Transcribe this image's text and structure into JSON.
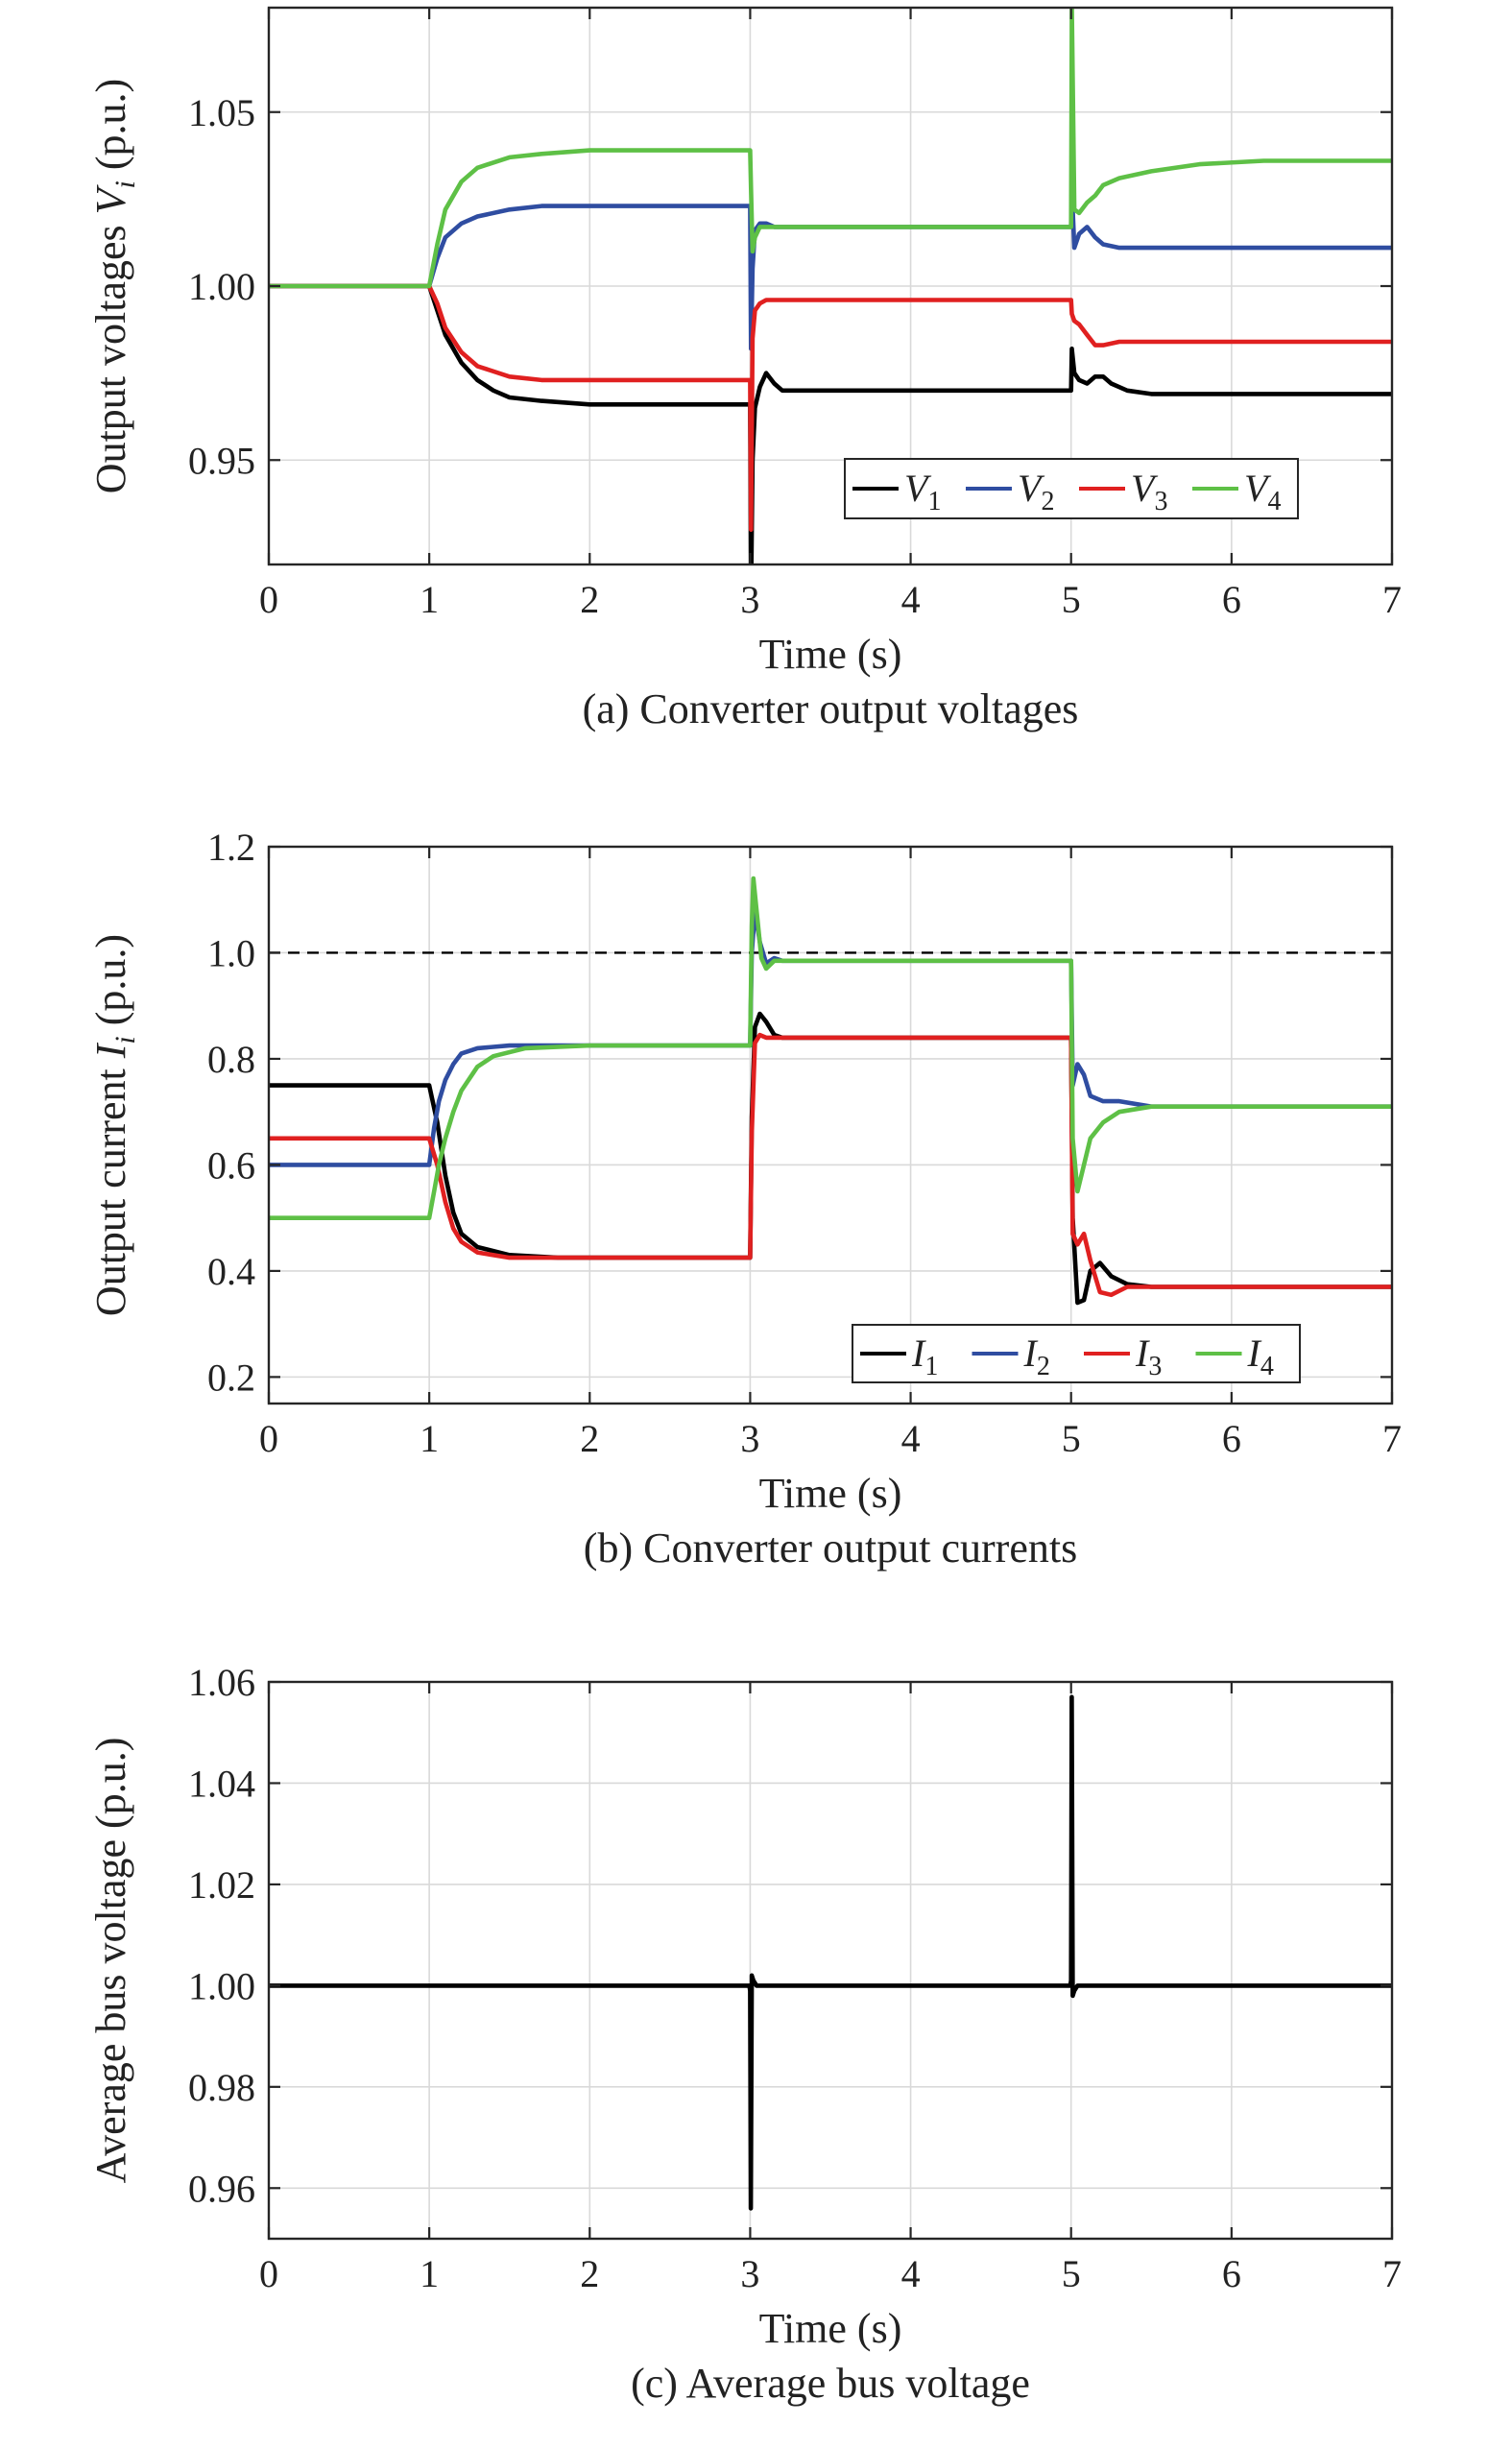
{
  "chart_data": [
    {
      "type": "line",
      "caption": "(a) Converter output voltages",
      "xlabel": "Time (s)",
      "ylabel_prefix": "Output voltages ",
      "ylabel_symbol": "V",
      "ylabel_sub": "i",
      "ylabel_suffix": " (p.u.)",
      "xlim": [
        0,
        7
      ],
      "ylim": [
        0.92,
        1.08
      ],
      "xticks": [
        "0",
        "1",
        "2",
        "3",
        "4",
        "5",
        "6",
        "7"
      ],
      "yticks": [
        "0.95",
        "1.00",
        "1.05"
      ],
      "ytick_values": [
        0.95,
        1.0,
        1.05
      ],
      "grid": true,
      "legend_position": "bottom-right",
      "series": [
        {
          "name": "V1",
          "symbol": "V",
          "sub": "1",
          "color": "#000000",
          "x": [
            0,
            1,
            1.05,
            1.1,
            1.2,
            1.3,
            1.4,
            1.5,
            1.7,
            2.0,
            2.5,
            2.99,
            3.0,
            3.005,
            3.015,
            3.03,
            3.06,
            3.1,
            3.15,
            3.2,
            3.3,
            4.0,
            4.99,
            5.0,
            5.005,
            5.02,
            5.05,
            5.1,
            5.15,
            5.2,
            5.25,
            5.35,
            5.5,
            6.0,
            7.0
          ],
          "y": [
            1.0,
            1.0,
            0.993,
            0.986,
            0.978,
            0.973,
            0.97,
            0.968,
            0.967,
            0.966,
            0.966,
            0.966,
            0.966,
            0.91,
            0.95,
            0.965,
            0.971,
            0.975,
            0.972,
            0.97,
            0.97,
            0.97,
            0.97,
            0.97,
            0.982,
            0.975,
            0.973,
            0.972,
            0.974,
            0.974,
            0.972,
            0.97,
            0.969,
            0.969,
            0.969
          ]
        },
        {
          "name": "V2",
          "symbol": "V",
          "sub": "2",
          "color": "#2f4da1",
          "x": [
            0,
            1,
            1.05,
            1.1,
            1.2,
            1.3,
            1.5,
            1.7,
            2.0,
            2.99,
            3.0,
            3.005,
            3.015,
            3.03,
            3.06,
            3.1,
            3.15,
            3.2,
            3.3,
            4.0,
            4.99,
            5.0,
            5.005,
            5.02,
            5.05,
            5.1,
            5.15,
            5.2,
            5.3,
            5.5,
            6.0,
            7.0
          ],
          "y": [
            1.0,
            1.0,
            1.008,
            1.014,
            1.018,
            1.02,
            1.022,
            1.023,
            1.023,
            1.023,
            1.023,
            0.982,
            1.005,
            1.016,
            1.018,
            1.018,
            1.017,
            1.017,
            1.017,
            1.017,
            1.017,
            1.017,
            1.028,
            1.011,
            1.015,
            1.017,
            1.014,
            1.012,
            1.011,
            1.011,
            1.011,
            1.011
          ]
        },
        {
          "name": "V3",
          "symbol": "V",
          "sub": "3",
          "color": "#e02020",
          "x": [
            0,
            1,
            1.05,
            1.1,
            1.2,
            1.3,
            1.5,
            1.7,
            2.0,
            2.99,
            3.0,
            3.005,
            3.015,
            3.03,
            3.06,
            3.1,
            3.2,
            4.0,
            4.99,
            5.0,
            5.005,
            5.02,
            5.05,
            5.1,
            5.15,
            5.2,
            5.3,
            5.5,
            6.0,
            7.0
          ],
          "y": [
            1.0,
            1.0,
            0.995,
            0.988,
            0.981,
            0.977,
            0.974,
            0.973,
            0.973,
            0.973,
            0.973,
            0.93,
            0.985,
            0.993,
            0.995,
            0.996,
            0.996,
            0.996,
            0.996,
            0.996,
            0.992,
            0.99,
            0.989,
            0.986,
            0.983,
            0.983,
            0.984,
            0.984,
            0.984,
            0.984
          ]
        },
        {
          "name": "V4",
          "symbol": "V",
          "sub": "4",
          "color": "#5ec046",
          "x": [
            0,
            1,
            1.05,
            1.1,
            1.2,
            1.3,
            1.5,
            1.7,
            2.0,
            2.99,
            3.0,
            3.005,
            3.015,
            3.03,
            3.06,
            3.1,
            3.2,
            4.0,
            4.99,
            5.0,
            5.005,
            5.02,
            5.05,
            5.1,
            5.15,
            5.2,
            5.3,
            5.5,
            5.8,
            6.2,
            7.0
          ],
          "y": [
            1.0,
            1.0,
            1.012,
            1.022,
            1.03,
            1.034,
            1.037,
            1.038,
            1.039,
            1.039,
            1.039,
            1.028,
            1.01,
            1.014,
            1.017,
            1.017,
            1.017,
            1.017,
            1.017,
            1.017,
            1.08,
            1.022,
            1.021,
            1.024,
            1.026,
            1.029,
            1.031,
            1.033,
            1.035,
            1.036,
            1.036
          ]
        }
      ]
    },
    {
      "type": "line",
      "caption": "(b) Converter output currents",
      "xlabel": "Time (s)",
      "ylabel_prefix": "Output current ",
      "ylabel_symbol": "I",
      "ylabel_sub": "i",
      "ylabel_suffix": " (p.u.)",
      "xlim": [
        0,
        7
      ],
      "ylim": [
        0.15,
        1.2
      ],
      "xticks": [
        "0",
        "1",
        "2",
        "3",
        "4",
        "5",
        "6",
        "7"
      ],
      "yticks": [
        "0.2",
        "0.4",
        "0.6",
        "0.8",
        "1.0",
        "1.2"
      ],
      "ytick_values": [
        0.2,
        0.4,
        0.6,
        0.8,
        1.0,
        1.2
      ],
      "reference_line": 1.0,
      "grid": true,
      "legend_position": "bottom-right",
      "series": [
        {
          "name": "I1",
          "symbol": "I",
          "sub": "1",
          "color": "#000000",
          "x": [
            0,
            1,
            1.05,
            1.1,
            1.15,
            1.2,
            1.3,
            1.5,
            1.8,
            2.5,
            2.99,
            3.0,
            3.01,
            3.03,
            3.06,
            3.1,
            3.15,
            3.2,
            3.3,
            4.0,
            4.99,
            5.0,
            5.01,
            5.04,
            5.08,
            5.12,
            5.18,
            5.25,
            5.35,
            5.5,
            6.0,
            7.0
          ],
          "y": [
            0.75,
            0.75,
            0.68,
            0.58,
            0.51,
            0.47,
            0.445,
            0.43,
            0.425,
            0.425,
            0.425,
            0.425,
            0.69,
            0.86,
            0.885,
            0.87,
            0.845,
            0.84,
            0.84,
            0.84,
            0.84,
            0.84,
            0.5,
            0.34,
            0.345,
            0.4,
            0.415,
            0.39,
            0.375,
            0.37,
            0.37,
            0.37
          ]
        },
        {
          "name": "I2",
          "symbol": "I",
          "sub": "2",
          "color": "#2f4da1",
          "x": [
            0,
            1,
            1.03,
            1.06,
            1.1,
            1.15,
            1.2,
            1.3,
            1.5,
            2.0,
            2.99,
            3.0,
            3.01,
            3.03,
            3.06,
            3.1,
            3.15,
            3.2,
            3.3,
            4.0,
            4.99,
            5.0,
            5.01,
            5.04,
            5.08,
            5.12,
            5.2,
            5.3,
            5.5,
            6.0,
            7.0
          ],
          "y": [
            0.6,
            0.6,
            0.67,
            0.72,
            0.76,
            0.79,
            0.81,
            0.82,
            0.825,
            0.825,
            0.825,
            0.825,
            1.0,
            1.08,
            1.02,
            0.98,
            0.99,
            0.985,
            0.985,
            0.985,
            0.985,
            0.985,
            0.75,
            0.79,
            0.77,
            0.73,
            0.72,
            0.72,
            0.71,
            0.71,
            0.71
          ]
        },
        {
          "name": "I3",
          "symbol": "I",
          "sub": "3",
          "color": "#e02020",
          "x": [
            0,
            1,
            1.05,
            1.1,
            1.15,
            1.2,
            1.3,
            1.5,
            1.8,
            2.5,
            2.99,
            3.0,
            3.01,
            3.03,
            3.06,
            3.1,
            3.2,
            4.0,
            4.99,
            5.0,
            5.01,
            5.04,
            5.08,
            5.12,
            5.18,
            5.25,
            5.35,
            5.5,
            6.0,
            7.0
          ],
          "y": [
            0.65,
            0.65,
            0.6,
            0.53,
            0.48,
            0.455,
            0.435,
            0.425,
            0.425,
            0.425,
            0.425,
            0.425,
            0.66,
            0.83,
            0.845,
            0.84,
            0.84,
            0.84,
            0.84,
            0.84,
            0.47,
            0.45,
            0.47,
            0.42,
            0.36,
            0.355,
            0.37,
            0.37,
            0.37,
            0.37
          ]
        },
        {
          "name": "I4",
          "symbol": "I",
          "sub": "4",
          "color": "#5ec046",
          "x": [
            0,
            1,
            1.03,
            1.06,
            1.1,
            1.15,
            1.2,
            1.3,
            1.4,
            1.6,
            2.0,
            2.99,
            3.0,
            3.01,
            3.02,
            3.04,
            3.07,
            3.1,
            3.15,
            3.2,
            3.3,
            4.0,
            4.99,
            5.0,
            5.01,
            5.04,
            5.08,
            5.12,
            5.2,
            5.3,
            5.5,
            6.0,
            7.0
          ],
          "y": [
            0.5,
            0.5,
            0.55,
            0.6,
            0.65,
            0.7,
            0.74,
            0.785,
            0.805,
            0.82,
            0.825,
            0.825,
            0.825,
            1.05,
            1.14,
            1.08,
            0.99,
            0.97,
            0.985,
            0.985,
            0.985,
            0.985,
            0.985,
            0.985,
            0.65,
            0.55,
            0.6,
            0.65,
            0.68,
            0.7,
            0.71,
            0.71,
            0.71
          ]
        }
      ]
    },
    {
      "type": "line",
      "caption": "(c) Average bus voltage",
      "xlabel": "Time (s)",
      "ylabel_prefix": "Average bus voltage (p.u.)",
      "ylabel_symbol": "",
      "ylabel_sub": "",
      "ylabel_suffix": "",
      "xlim": [
        0,
        7
      ],
      "ylim": [
        0.95,
        1.06
      ],
      "xticks": [
        "0",
        "1",
        "2",
        "3",
        "4",
        "5",
        "6",
        "7"
      ],
      "yticks": [
        "0.96",
        "0.98",
        "1.00",
        "1.02",
        "1.04",
        "1.06"
      ],
      "ytick_values": [
        0.96,
        0.98,
        1.0,
        1.02,
        1.04,
        1.06
      ],
      "grid": true,
      "legend_position": "none",
      "series": [
        {
          "name": "",
          "symbol": "",
          "sub": "",
          "color": "#000000",
          "x": [
            0,
            2.995,
            3.0,
            3.004,
            3.01,
            3.02,
            3.04,
            4.995,
            5.0,
            5.004,
            5.01,
            5.02,
            5.04,
            7.0
          ],
          "y": [
            1.0,
            1.0,
            0.999,
            0.956,
            1.002,
            1.001,
            1.0,
            1.0,
            1.001,
            1.057,
            0.998,
            0.999,
            1.0,
            1.0
          ]
        }
      ]
    }
  ]
}
